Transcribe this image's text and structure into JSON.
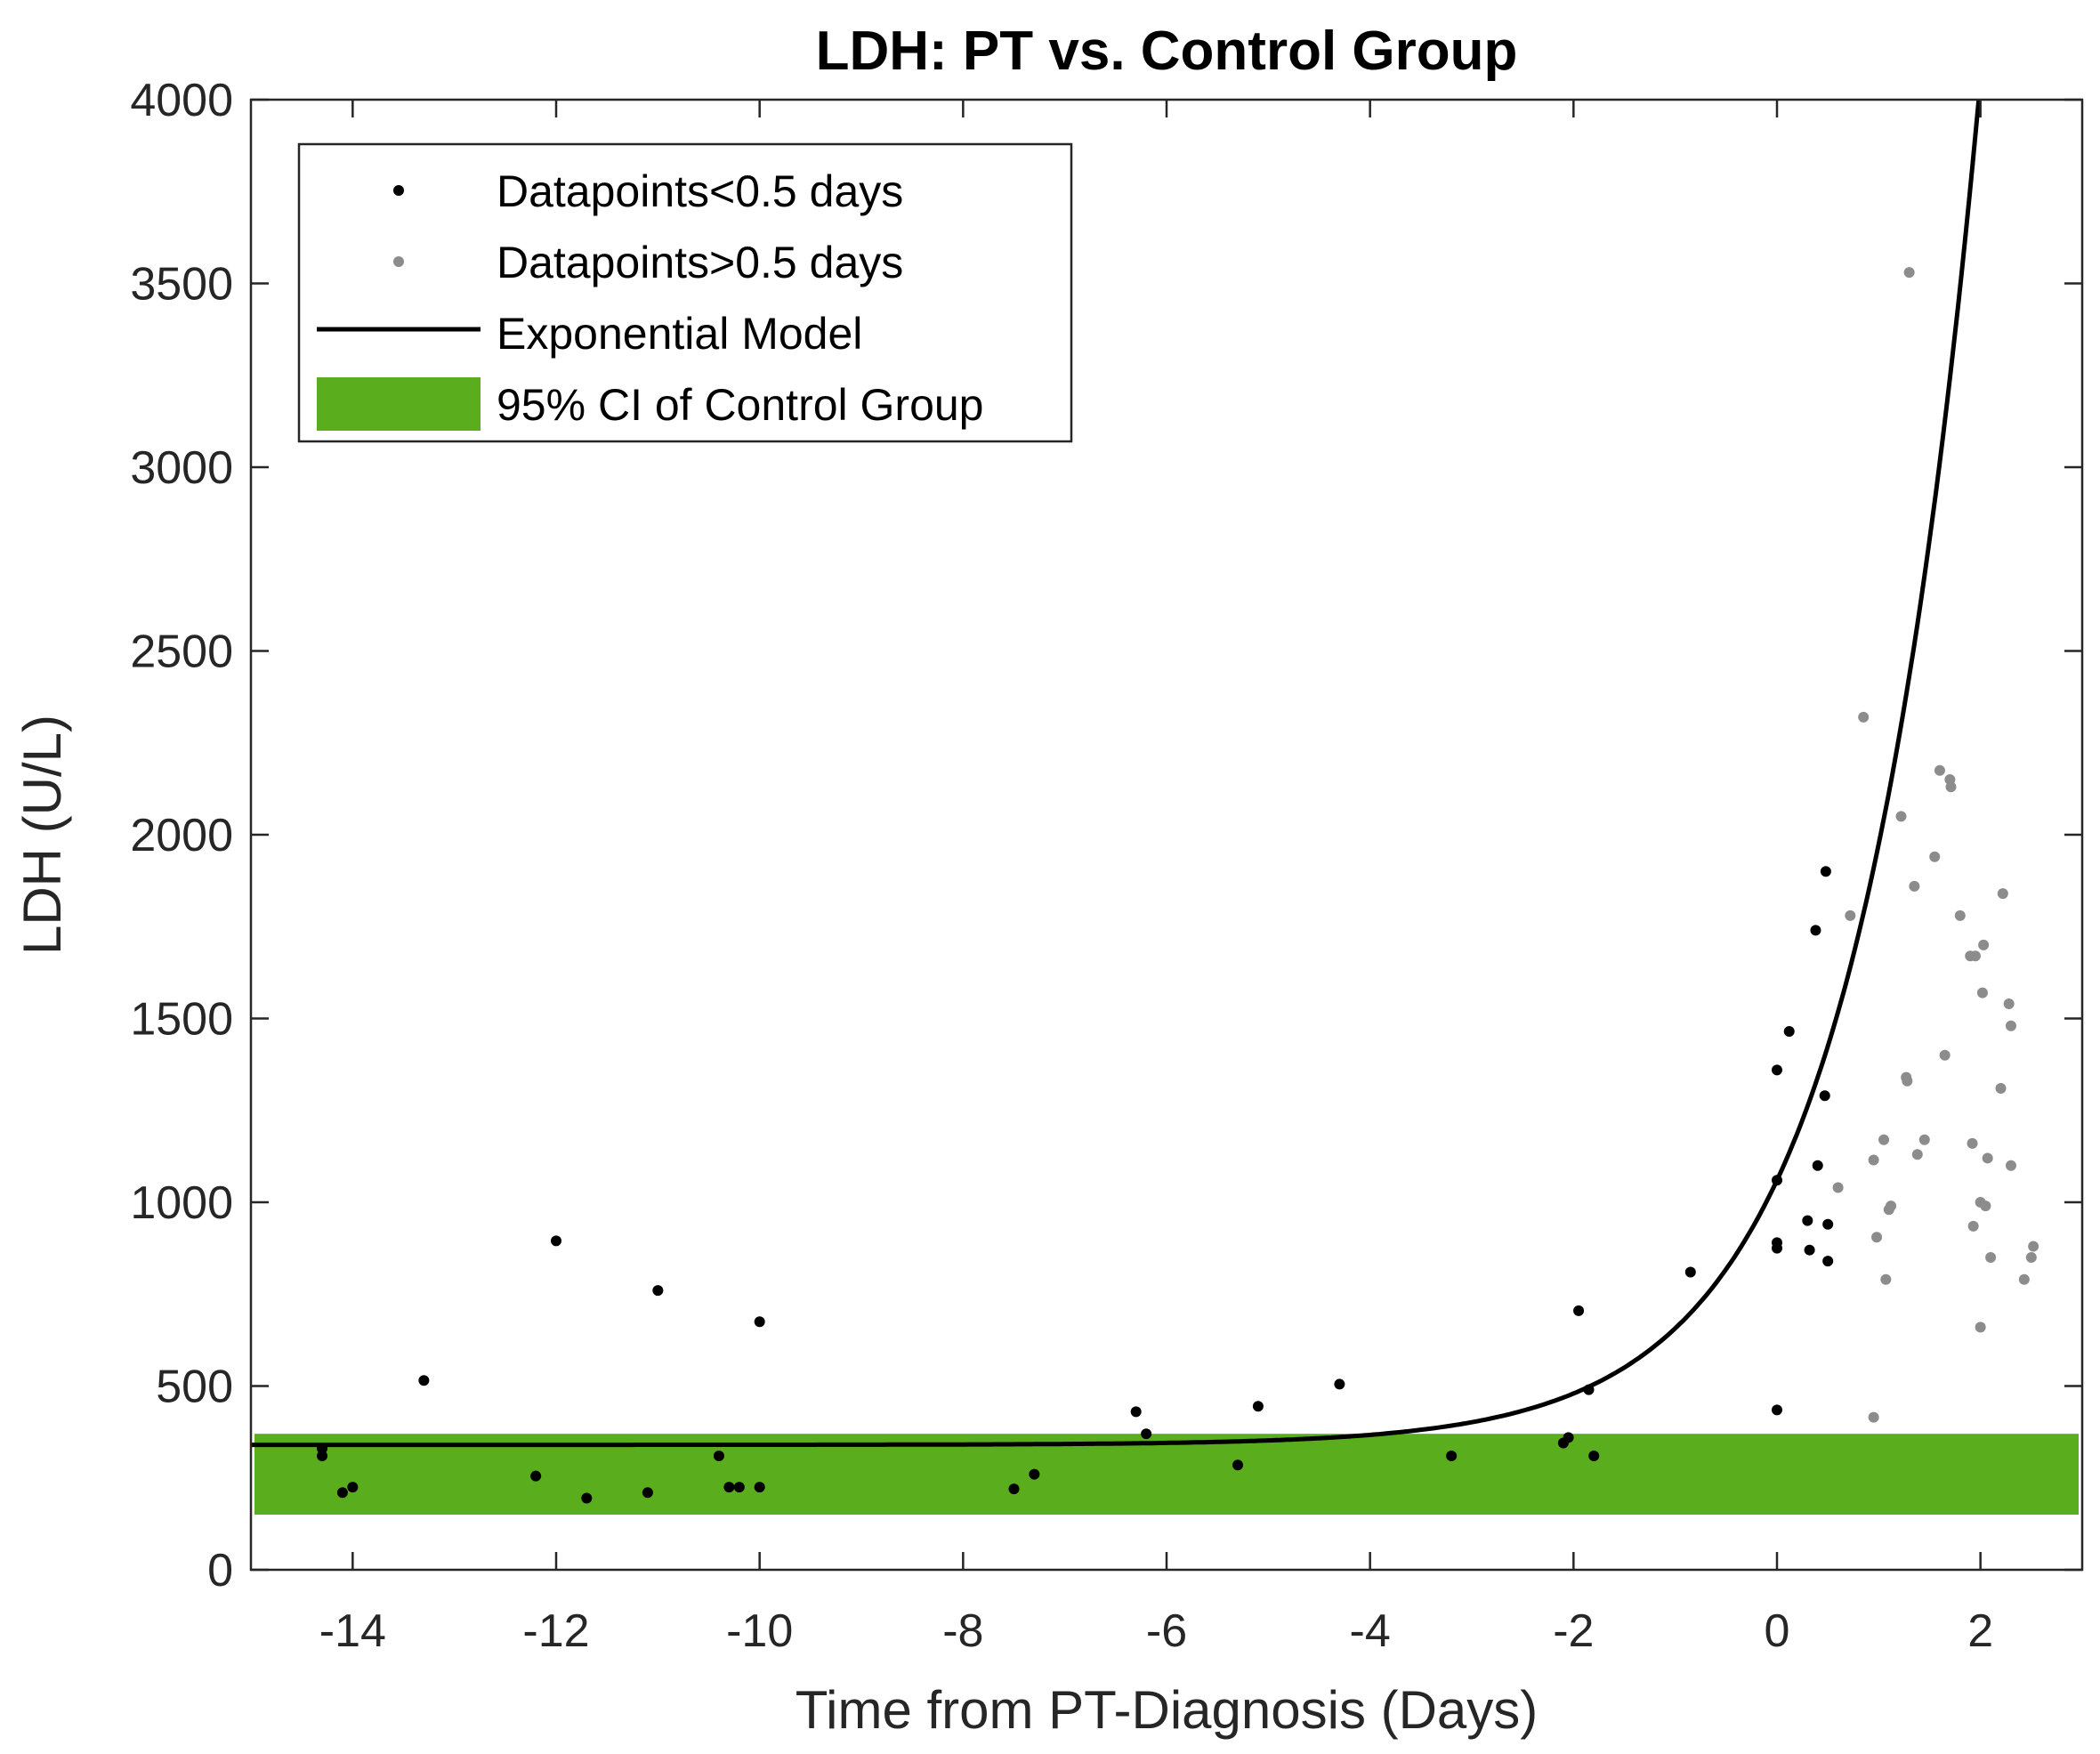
{
  "chart_data": {
    "type": "scatter",
    "title": "LDH: PT vs. Control Group",
    "xlabel": "Time from PT-Diagnosis (Days)",
    "ylabel": "LDH (U/L)",
    "xlim": [
      -15,
      3
    ],
    "ylim": [
      0,
      4000
    ],
    "xticks": [
      -14,
      -12,
      -10,
      -8,
      -6,
      -4,
      -2,
      0,
      2
    ],
    "yticks": [
      0,
      500,
      1000,
      1500,
      2000,
      2500,
      3000,
      3500,
      4000
    ],
    "grid": false,
    "legend_position": "top-left",
    "colors": {
      "lt_points": "#000000",
      "gt_points": "#8c8c8c",
      "model": "#000000",
      "ci_band": "#5aad1c",
      "axis": "#262626"
    },
    "legend": [
      {
        "label": "Datapoints<0.5 days",
        "kind": "marker",
        "series": "lt"
      },
      {
        "label": "Datapoints>0.5 days",
        "kind": "marker",
        "series": "gt"
      },
      {
        "label": "Exponential Model",
        "kind": "line",
        "series": "model"
      },
      {
        "label": "95% CI of Control Group",
        "kind": "patch",
        "series": "ci"
      }
    ],
    "ci_band": {
      "name": "95% CI of Control Group",
      "lower": 150,
      "upper": 370
    },
    "model": {
      "name": "Exponential Model",
      "baseline": 340,
      "amplitude": 720,
      "rate": 0.82
    },
    "series": [
      {
        "name": "Datapoints<0.5 days",
        "key": "lt",
        "points": [
          [
            -14.3,
            310
          ],
          [
            -14.3,
            330
          ],
          [
            -14.1,
            210
          ],
          [
            -14.0,
            225
          ],
          [
            -13.3,
            515
          ],
          [
            -12.2,
            255
          ],
          [
            -12.0,
            895
          ],
          [
            -11.7,
            195
          ],
          [
            -11.1,
            210
          ],
          [
            -11.0,
            760
          ],
          [
            -10.4,
            310
          ],
          [
            -10.3,
            225
          ],
          [
            -10.2,
            225
          ],
          [
            -10.0,
            225
          ],
          [
            -10.0,
            675
          ],
          [
            -7.5,
            220
          ],
          [
            -7.3,
            260
          ],
          [
            -6.3,
            430
          ],
          [
            -6.2,
            370
          ],
          [
            -5.3,
            285
          ],
          [
            -5.1,
            445
          ],
          [
            -4.3,
            505
          ],
          [
            -3.2,
            310
          ],
          [
            -2.1,
            345
          ],
          [
            -2.05,
            360
          ],
          [
            -1.95,
            705
          ],
          [
            -1.85,
            490
          ],
          [
            -1.8,
            310
          ],
          [
            -0.85,
            810
          ],
          [
            0.0,
            435
          ],
          [
            0.0,
            875
          ],
          [
            0.0,
            890
          ],
          [
            0.0,
            1060
          ],
          [
            0.0,
            1360
          ],
          [
            0.12,
            1465
          ],
          [
            0.3,
            950
          ],
          [
            0.32,
            870
          ],
          [
            0.38,
            1740
          ],
          [
            0.4,
            1100
          ],
          [
            0.47,
            1290
          ],
          [
            0.48,
            1900
          ],
          [
            0.5,
            940
          ],
          [
            0.5,
            840
          ]
        ]
      },
      {
        "name": "Datapoints>0.5 days",
        "key": "gt",
        "points": [
          [
            0.6,
            1040
          ],
          [
            0.72,
            1780
          ],
          [
            0.85,
            2320
          ],
          [
            0.95,
            415
          ],
          [
            0.95,
            1115
          ],
          [
            0.98,
            905
          ],
          [
            1.05,
            1170
          ],
          [
            1.07,
            790
          ],
          [
            1.1,
            980
          ],
          [
            1.12,
            990
          ],
          [
            1.22,
            2050
          ],
          [
            1.27,
            1340
          ],
          [
            1.28,
            1330
          ],
          [
            1.3,
            3530
          ],
          [
            1.35,
            1860
          ],
          [
            1.38,
            1130
          ],
          [
            1.45,
            1170
          ],
          [
            1.55,
            1940
          ],
          [
            1.6,
            2175
          ],
          [
            1.65,
            1400
          ],
          [
            1.7,
            2150
          ],
          [
            1.71,
            2130
          ],
          [
            1.8,
            1780
          ],
          [
            1.9,
            1670
          ],
          [
            1.92,
            1160
          ],
          [
            1.93,
            935
          ],
          [
            1.95,
            1670
          ],
          [
            2.0,
            660
          ],
          [
            2.0,
            1000
          ],
          [
            2.02,
            1570
          ],
          [
            2.03,
            1700
          ],
          [
            2.05,
            990
          ],
          [
            2.07,
            1120
          ],
          [
            2.1,
            850
          ],
          [
            2.2,
            1310
          ],
          [
            2.22,
            1840
          ],
          [
            2.28,
            1540
          ],
          [
            2.3,
            1480
          ],
          [
            2.3,
            1100
          ],
          [
            2.43,
            790
          ],
          [
            2.5,
            850
          ],
          [
            2.52,
            880
          ]
        ]
      }
    ]
  }
}
